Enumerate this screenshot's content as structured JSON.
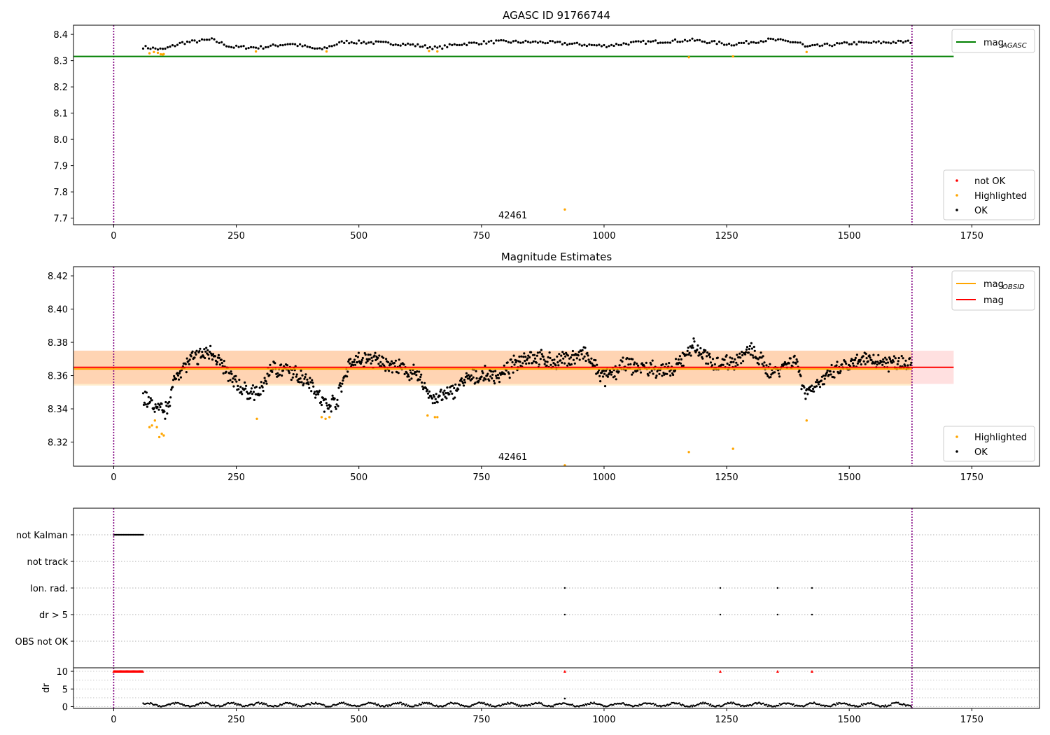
{
  "chart_data": [
    {
      "type": "scatter",
      "title": "AGASC ID 91766744",
      "xlim": [
        -82,
        1888
      ],
      "ylim": [
        7.675,
        8.435
      ],
      "xticks": [
        0,
        250,
        500,
        750,
        1000,
        1250,
        1500,
        1750
      ],
      "yticks": [
        7.7,
        7.8,
        7.9,
        8.0,
        8.1,
        8.2,
        8.3,
        8.4
      ],
      "ytick_labels": [
        "7.7",
        "7.8",
        "7.9",
        "8.0",
        "8.1",
        "8.2",
        "8.3",
        "8.4"
      ],
      "vlines": [
        0,
        1628
      ],
      "obsid_label": "42461",
      "obsid_label_x": 814,
      "mag_agasc": 8.316,
      "mag_agasc_xrange": [
        -82,
        1713
      ],
      "ok_series": {
        "name": "OK",
        "x_start": 60,
        "x_end": 1628,
        "step": 5,
        "segments": [
          {
            "x": [
              60,
              100,
              140,
              200,
              240,
              300,
              360,
              420,
              470,
              540,
              600,
              660,
              700,
              780,
              880,
              1000,
              1060,
              1180,
              1260,
              1340,
              1400,
              1410,
              1500,
              1628
            ],
            "y": [
              8.352,
              8.342,
              8.368,
              8.38,
              8.352,
              8.35,
              8.365,
              8.342,
              8.372,
              8.368,
              8.362,
              8.348,
              8.362,
              8.372,
              8.37,
              8.356,
              8.368,
              8.378,
              8.362,
              8.38,
              8.368,
              8.352,
              8.366,
              8.372
            ]
          }
        ]
      },
      "highlighted": {
        "name": "Highlighted",
        "x": [
          73,
          82,
          90,
          96,
          100,
          102,
          290,
          434,
          643,
          660,
          920,
          1173,
          1263,
          1413
        ],
        "y": [
          8.328,
          8.333,
          8.33,
          8.324,
          8.323,
          8.325,
          8.335,
          8.335,
          8.337,
          8.335,
          7.733,
          8.313,
          8.316,
          8.333
        ]
      },
      "legend_lines": [
        {
          "name": "mag",
          "sub": "AGASC",
          "color": "#008000"
        }
      ],
      "legend_points": [
        {
          "name": "not OK",
          "color": "#ff0000"
        },
        {
          "name": "Highlighted",
          "color": "#ffa500"
        },
        {
          "name": "OK",
          "color": "#000000"
        }
      ]
    },
    {
      "type": "scatter",
      "title": "Magnitude Estimates",
      "xlim": [
        -82,
        1888
      ],
      "ylim": [
        8.3055,
        8.4255
      ],
      "xticks": [
        0,
        250,
        500,
        750,
        1000,
        1250,
        1500,
        1750
      ],
      "yticks": [
        8.32,
        8.34,
        8.36,
        8.38,
        8.4,
        8.42
      ],
      "ytick_labels": [
        "8.32",
        "8.34",
        "8.36",
        "8.38",
        "8.40",
        "8.42"
      ],
      "vlines": [
        0,
        1628
      ],
      "obsid_label": "42461",
      "obsid_label_x": 814,
      "mag": 8.365,
      "mag_band": [
        8.355,
        8.375
      ],
      "mag_obsid": 8.364,
      "mag_obsid_band": [
        8.354,
        8.375
      ],
      "band_xrange": [
        -82,
        1713
      ],
      "ok_series": {
        "name": "OK",
        "anchors_x": [
          60,
          80,
          105,
          130,
          160,
          200,
          240,
          270,
          300,
          320,
          360,
          400,
          430,
          455,
          480,
          520,
          560,
          620,
          650,
          680,
          720,
          760,
          790,
          840,
          900,
          960,
          1000,
          1040,
          1100,
          1140,
          1180,
          1220,
          1260,
          1300,
          1340,
          1390,
          1410,
          1440,
          1480,
          1540,
          1580,
          1628
        ],
        "anchors_y": [
          8.348,
          8.342,
          8.338,
          8.362,
          8.37,
          8.375,
          8.358,
          8.35,
          8.35,
          8.365,
          8.362,
          8.357,
          8.342,
          8.345,
          8.368,
          8.37,
          8.367,
          8.36,
          8.346,
          8.348,
          8.358,
          8.36,
          8.36,
          8.372,
          8.368,
          8.373,
          8.358,
          8.366,
          8.364,
          8.362,
          8.378,
          8.368,
          8.368,
          8.375,
          8.362,
          8.37,
          8.35,
          8.356,
          8.364,
          8.37,
          8.368,
          8.368
        ],
        "scatter": 0.006
      },
      "highlighted": {
        "name": "Highlighted",
        "x": [
          73,
          78,
          84,
          88,
          93,
          98,
          102,
          292,
          424,
          432,
          440,
          640,
          655,
          660,
          920,
          1173,
          1263,
          1413
        ],
        "y": [
          8.329,
          8.33,
          8.333,
          8.329,
          8.323,
          8.325,
          8.324,
          8.334,
          8.335,
          8.334,
          8.335,
          8.336,
          8.335,
          8.335,
          8.306,
          8.314,
          8.316,
          8.333
        ]
      },
      "legend_lines": [
        {
          "name": "mag",
          "sub": "OBSID",
          "color": "#ffa500"
        },
        {
          "name": "mag",
          "sub": "",
          "color": "#ff0000"
        }
      ],
      "legend_points": [
        {
          "name": "Highlighted",
          "color": "#ffa500"
        },
        {
          "name": "OK",
          "color": "#000000"
        }
      ]
    },
    {
      "type": "scatter",
      "title": "",
      "xlim": [
        -82,
        1888
      ],
      "vlines": [
        0,
        1628
      ],
      "flag_rows": [
        "not Kalman",
        "not track",
        "Ion. rad.",
        "dr > 5",
        "OBS not OK"
      ],
      "flags": {
        "not Kalman": {
          "x_start": 0,
          "x_end": 60
        },
        "not track": {
          "x": []
        },
        "Ion. rad.": {
          "x": [
            920,
            1237,
            1354,
            1424
          ]
        },
        "dr > 5": {
          "x": [
            920,
            1237,
            1354,
            1424
          ]
        },
        "OBS not OK": {
          "x": []
        }
      },
      "dr": {
        "ylabel": "dr",
        "ylim": [
          -0.5,
          11
        ],
        "yticks": [
          0,
          5,
          10
        ],
        "ytick_labels": [
          "0",
          "5",
          "10"
        ],
        "xticks": [
          0,
          250,
          500,
          750,
          1000,
          1250,
          1500,
          1750
        ],
        "clipped_x_start": 0,
        "clipped_x_end": 60,
        "clipped_extra_x": [
          920,
          1237,
          1354,
          1424
        ],
        "clipped_value": 10,
        "spike_x": 920,
        "spike_value": 2.3,
        "x_start": 60,
        "x_end": 1628
      }
    }
  ]
}
